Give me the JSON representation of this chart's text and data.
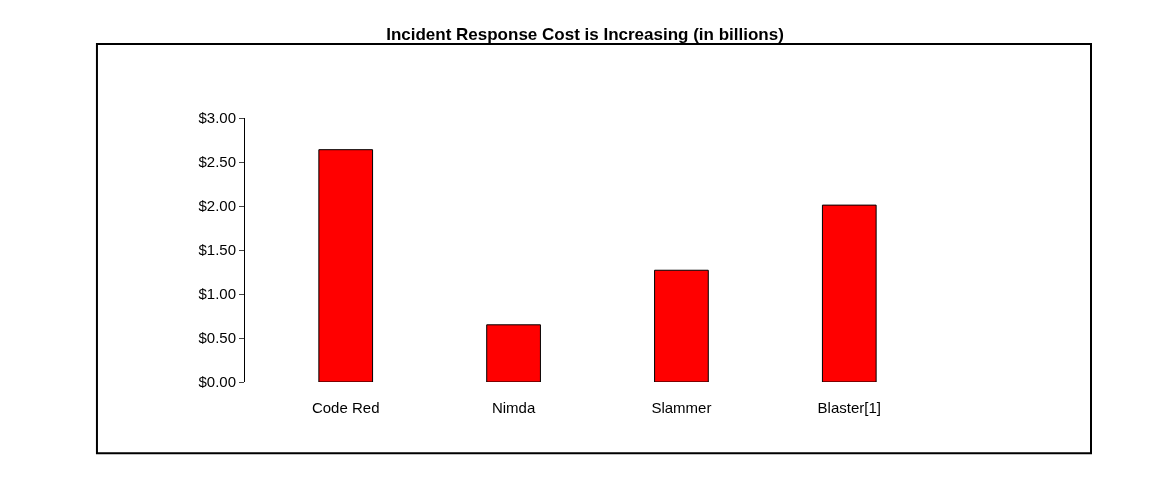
{
  "chart_data": {
    "type": "bar",
    "title": "Incident Response Cost is Increasing (in billions)",
    "categories": [
      "Code Red",
      "Nimda",
      "Slammer",
      "Blaster[1]"
    ],
    "values": [
      2.64,
      0.65,
      1.27,
      2.01
    ],
    "color": "#ff0000",
    "ylim": [
      0,
      3
    ],
    "yticks": [
      {
        "value": 0,
        "label": "$0.00"
      },
      {
        "value": 0.5,
        "label": "$0.50"
      },
      {
        "value": 1,
        "label": "$1.00"
      },
      {
        "value": 1.5,
        "label": "$1.50"
      },
      {
        "value": 2,
        "label": "$2.00"
      },
      {
        "value": 2.5,
        "label": "$2.50"
      },
      {
        "value": 3,
        "label": "$3.00"
      }
    ],
    "legend": false
  }
}
